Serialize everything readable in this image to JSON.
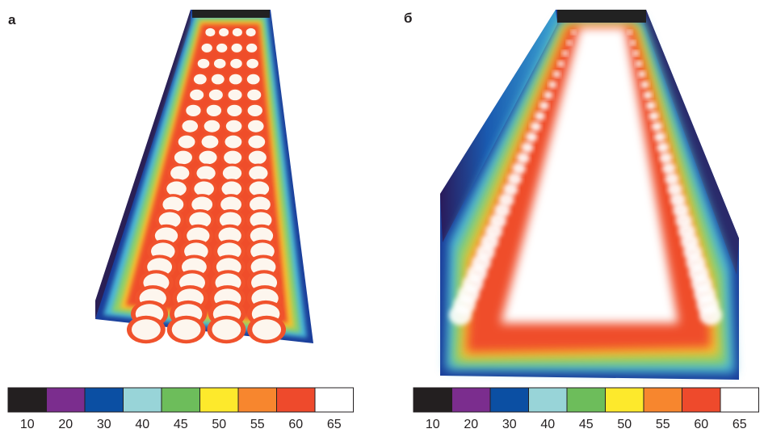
{
  "panels": [
    {
      "label": "а",
      "legend": [
        {
          "value": 10,
          "color": "#231f20"
        },
        {
          "value": 20,
          "color": "#7b2d8e"
        },
        {
          "value": 30,
          "color": "#0b4fa3"
        },
        {
          "value": 40,
          "color": "#98d4d8"
        },
        {
          "value": 45,
          "color": "#6dbd5b"
        },
        {
          "value": 50,
          "color": "#fde92c"
        },
        {
          "value": 55,
          "color": "#f7862e"
        },
        {
          "value": 60,
          "color": "#ee4a2c"
        },
        {
          "value": 65,
          "color": "#ffffff"
        }
      ]
    },
    {
      "label": "б",
      "legend": [
        {
          "value": 10,
          "color": "#231f20"
        },
        {
          "value": 20,
          "color": "#7b2d8e"
        },
        {
          "value": 30,
          "color": "#0b4fa3"
        },
        {
          "value": 40,
          "color": "#98d4d8"
        },
        {
          "value": 45,
          "color": "#6dbd5b"
        },
        {
          "value": 50,
          "color": "#fde92c"
        },
        {
          "value": 55,
          "color": "#f7862e"
        },
        {
          "value": 60,
          "color": "#ee4a2c"
        },
        {
          "value": 65,
          "color": "#ffffff"
        }
      ]
    }
  ]
}
